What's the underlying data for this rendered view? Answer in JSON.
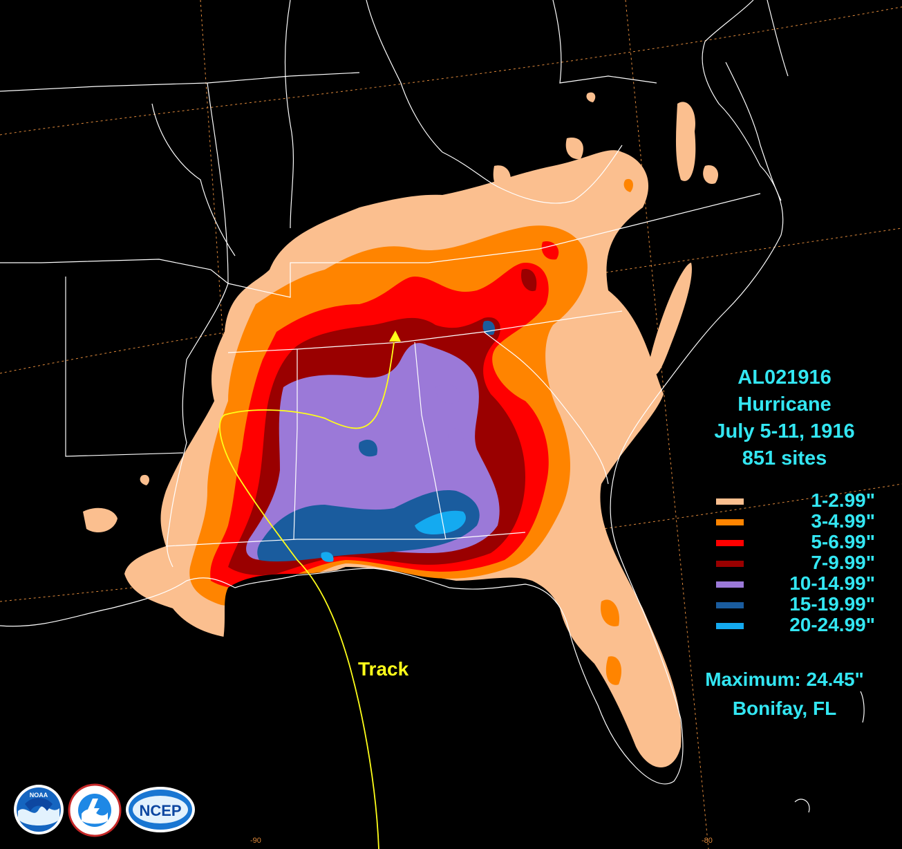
{
  "storm": {
    "id": "AL021916",
    "type": "Hurricane",
    "dates": "July 5-11, 1916",
    "sites": "851 sites"
  },
  "legend": [
    {
      "label": "1-2.99\"",
      "color": "#fbbf8f"
    },
    {
      "label": "3-4.99\"",
      "color": "#ff8400"
    },
    {
      "label": "5-6.99\"",
      "color": "#ff0000"
    },
    {
      "label": "7-9.99\"",
      "color": "#9a0000"
    },
    {
      "label": "10-14.99\"",
      "color": "#9b79d8"
    },
    {
      "label": "15-19.99\"",
      "color": "#1a5c9e"
    },
    {
      "label": "20-24.99\"",
      "color": "#14aaf0"
    }
  ],
  "maximum": {
    "line1": "Maximum: 24.45\"",
    "line2": "Bonifay, FL"
  },
  "track": {
    "label": "Track",
    "color": "#ffff1a"
  },
  "longitude_labels": [
    "-90",
    "-80"
  ],
  "logos": {
    "noaa": "NOAA",
    "nws": "NATIONAL WEATHER SERVICE",
    "ncep": "NCEP"
  },
  "colors": {
    "background": "#000000",
    "borders": "#ffffff",
    "graticule": "#e08a3c",
    "text": "#33e6f2"
  }
}
